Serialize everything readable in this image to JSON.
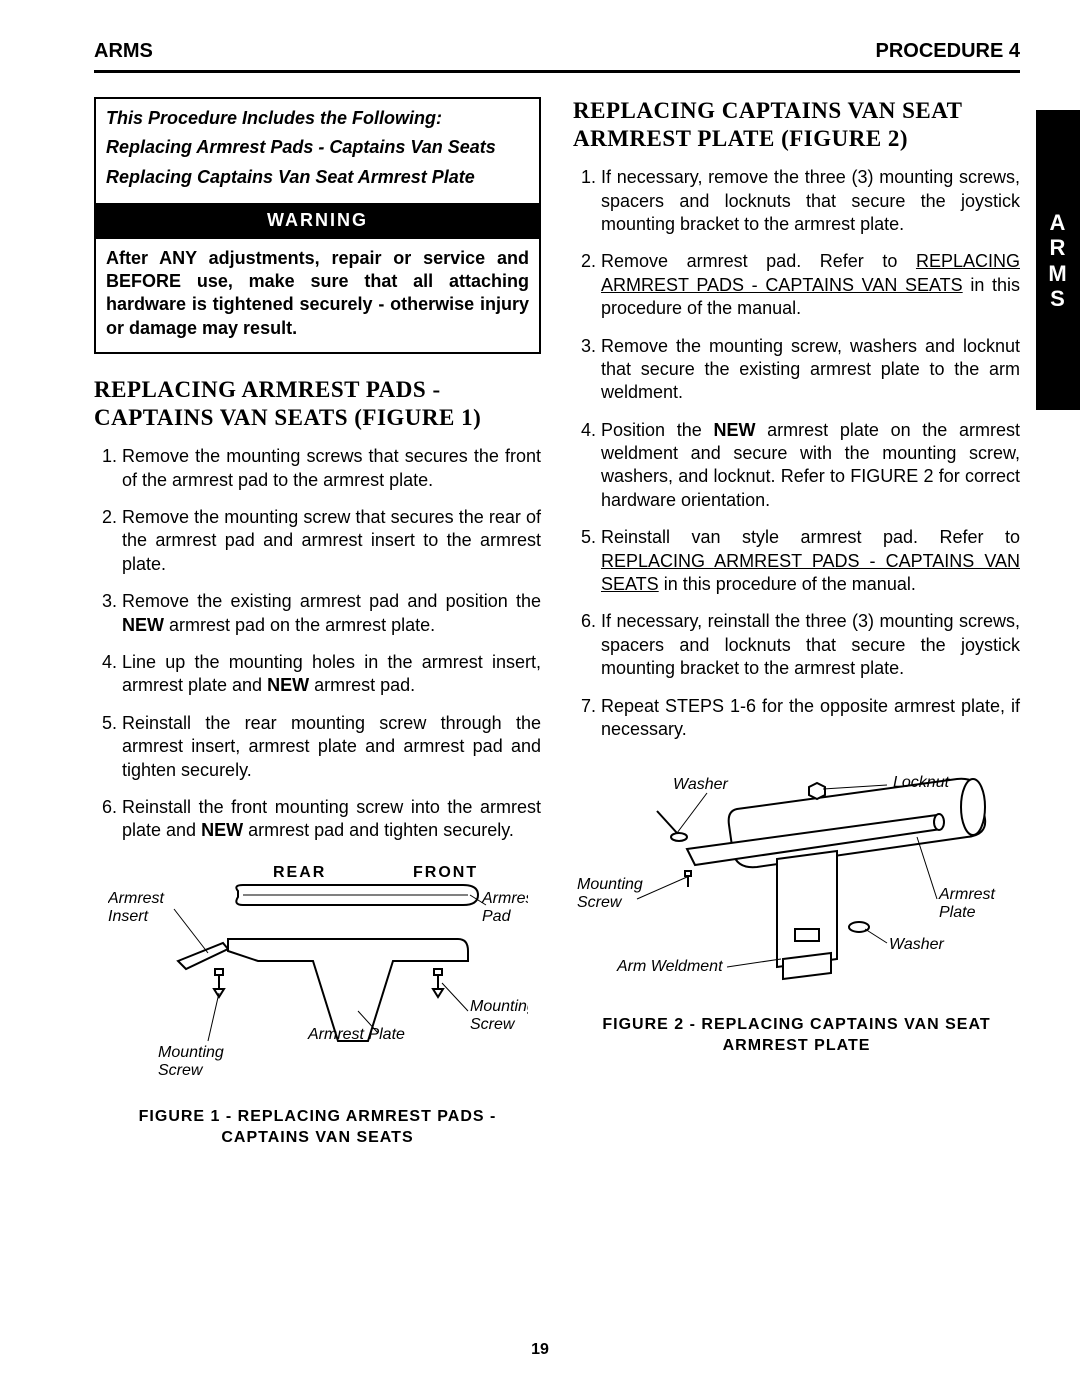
{
  "header": {
    "left": "ARMS",
    "right": "PROCEDURE 4"
  },
  "sideTab": [
    "A",
    "R",
    "M",
    "S"
  ],
  "pageNumber": "19",
  "includes": {
    "intro": "This Procedure Includes the Following:",
    "lines": [
      "Replacing Armrest Pads - Captains Van Seats",
      "Replacing Captains Van Seat Armrest Plate"
    ]
  },
  "warning": {
    "title": "WARNING",
    "body": "After ANY adjustments, repair or service and BEFORE use, make sure that all attaching hardware is tightened securely - otherwise injury or damage may result."
  },
  "section1": {
    "title": "REPLACING ARMREST PADS - CAPTAINS VAN SEATS (FIGURE 1)",
    "steps": [
      "Remove the mounting screws that secures the front of the armrest pad to the armrest plate.",
      "Remove the mounting screw that secures the rear of the armrest pad and armrest insert to the armrest plate.",
      "Remove the existing armrest pad and position the <b>NEW</b> armrest pad on the armrest plate.",
      "Line up the mounting holes in the armrest insert, armrest plate and <b>NEW</b> armrest pad.",
      "Reinstall the rear mounting screw through the armrest insert, armrest plate and armrest pad and tighten securely.",
      "Reinstall the front mounting screw into the armrest plate and <b>NEW</b> armrest pad and tighten securely."
    ]
  },
  "section2": {
    "title": "REPLACING CAPTAINS VAN SEAT ARMREST PLATE (FIGURE 2)",
    "steps": [
      "If necessary, remove the three (3) mounting screws, spacers and locknuts that secure the joystick mounting bracket to the armrest plate.",
      "Remove armrest pad. Refer to <u>REPLACING ARMREST PADS - CAPTAINS VAN SEATS</u> in this procedure of the manual.",
      "Remove the mounting screw, washers and locknut that secure the existing armrest plate to the arm weldment.",
      "Position the <b>NEW</b> armrest plate on the armrest weldment and secure with the mounting screw, washers, and locknut. Refer to FIGURE 2 for correct hardware orientation.",
      "Reinstall van style armrest pad. Refer to <u>REPLACING ARMREST PADS - CAPTAINS VAN SEATS</u> in this procedure of the manual.",
      "If necessary, reinstall the three (3) mounting screws, spacers and locknuts that secure the joystick mounting bracket to the armrest plate.",
      "Repeat STEPS 1-6 for the opposite armrest plate, if necessary."
    ]
  },
  "figure1": {
    "caption": "FIGURE 1 - REPLACING ARMREST PADS - CAPTAINS VAN SEATS",
    "rear": "REAR",
    "front": "FRONT",
    "labels": {
      "armrestInsert": "Armrest Insert",
      "armrestPad": "Armrest Pad",
      "armrestPlate": "Armrest Plate",
      "mountingScrew": "Mounting Screw"
    }
  },
  "figure2": {
    "caption": "FIGURE 2 - REPLACING CAPTAINS VAN SEAT ARMREST PLATE",
    "labels": {
      "washer": "Washer",
      "locknut": "Locknut",
      "mountingScrew": "Mounting Screw",
      "armrestPlate": "Armrest Plate",
      "armWeldment": "Arm Weldment"
    }
  },
  "colors": {
    "text": "#000000",
    "background": "#ffffff",
    "rule": "#000000"
  }
}
